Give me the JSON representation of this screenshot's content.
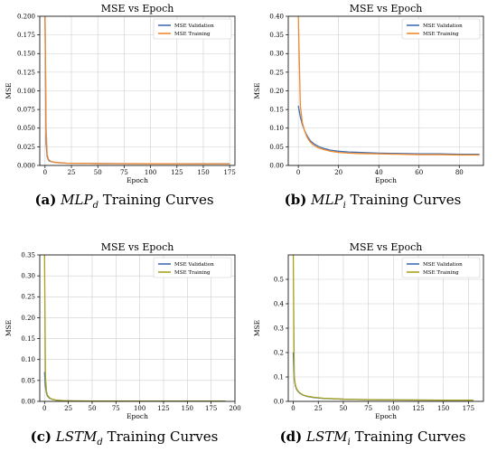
{
  "colors": {
    "validation": "#3f6fb3",
    "training_orange": "#f08a2e",
    "training_olive": "#a8a21c",
    "grid": "#cfcfcf"
  },
  "captions": [
    {
      "letter": "(a)",
      "model": "MLP",
      "sub": "d",
      "rest": "Training Curves"
    },
    {
      "letter": "(b)",
      "model": "MLP",
      "sub": "i",
      "rest": "Training Curves"
    },
    {
      "letter": "(c)",
      "model": "LSTM",
      "sub": "d",
      "rest": "Training Curves"
    },
    {
      "letter": "(d)",
      "model": "LSTM",
      "sub": "i",
      "rest": "Training Curves"
    }
  ],
  "chart_data": [
    {
      "type": "line",
      "title": "MSE vs Epoch",
      "xlabel": "Epoch",
      "ylabel": "MSE",
      "xlim": [
        -5,
        180
      ],
      "ylim": [
        0,
        0.2
      ],
      "xticks": [
        0,
        25,
        50,
        75,
        100,
        125,
        150,
        175
      ],
      "yticks": [
        0.0,
        0.025,
        0.05,
        0.075,
        0.1,
        0.125,
        0.15,
        0.175,
        0.2
      ],
      "ytick_labels": [
        "0.000",
        "0.025",
        "0.050",
        "0.075",
        "0.100",
        "0.125",
        "0.150",
        "0.175",
        "0.200"
      ],
      "grid": true,
      "legend": "top-right",
      "series": [
        {
          "name": "MSE Validation",
          "color": "#3f6fb3",
          "x": [
            0,
            1,
            2,
            3,
            4,
            6,
            10,
            20,
            50,
            100,
            150,
            175
          ],
          "y": [
            0.2,
            0.03,
            0.012,
            0.008,
            0.006,
            0.005,
            0.004,
            0.003,
            0.0025,
            0.0023,
            0.0022,
            0.0022
          ]
        },
        {
          "name": "MSE Training",
          "color": "#f08a2e",
          "x": [
            0,
            1,
            2,
            3,
            4,
            6,
            10,
            20,
            50,
            100,
            150,
            175
          ],
          "y": [
            0.2,
            0.05,
            0.015,
            0.009,
            0.007,
            0.005,
            0.004,
            0.003,
            0.0025,
            0.0022,
            0.0021,
            0.0021
          ]
        }
      ]
    },
    {
      "type": "line",
      "title": "MSE vs Epoch",
      "xlabel": "Epoch",
      "ylabel": "MSE",
      "xlim": [
        -5,
        92
      ],
      "ylim": [
        0,
        0.4
      ],
      "xticks": [
        0,
        20,
        40,
        60,
        80
      ],
      "yticks": [
        0.0,
        0.05,
        0.1,
        0.15,
        0.2,
        0.25,
        0.3,
        0.35,
        0.4
      ],
      "ytick_labels": [
        "0.00",
        "0.05",
        "0.10",
        "0.15",
        "0.20",
        "0.25",
        "0.30",
        "0.35",
        "0.40"
      ],
      "grid": true,
      "legend": "top-right",
      "series": [
        {
          "name": "MSE Validation",
          "color": "#3f6fb3",
          "x": [
            0,
            1,
            2,
            3,
            4,
            5,
            6,
            8,
            10,
            13,
            16,
            20,
            25,
            30,
            40,
            50,
            60,
            70,
            80,
            90
          ],
          "y": [
            0.16,
            0.13,
            0.11,
            0.095,
            0.083,
            0.074,
            0.066,
            0.057,
            0.051,
            0.045,
            0.041,
            0.038,
            0.036,
            0.035,
            0.033,
            0.032,
            0.031,
            0.031,
            0.03,
            0.03
          ]
        },
        {
          "name": "MSE Training",
          "color": "#f08a2e",
          "x": [
            0,
            1,
            2,
            3,
            4,
            5,
            6,
            8,
            10,
            13,
            16,
            20,
            25,
            30,
            40,
            50,
            60,
            70,
            80,
            90
          ],
          "y": [
            0.4,
            0.16,
            0.115,
            0.095,
            0.08,
            0.07,
            0.062,
            0.053,
            0.047,
            0.042,
            0.038,
            0.035,
            0.033,
            0.032,
            0.031,
            0.03,
            0.029,
            0.029,
            0.028,
            0.028
          ]
        }
      ]
    },
    {
      "type": "line",
      "title": "MSE vs Epoch",
      "xlabel": "Epoch",
      "ylabel": "MSE",
      "xlim": [
        -5,
        200
      ],
      "ylim": [
        0,
        0.35
      ],
      "xticks": [
        0,
        25,
        50,
        75,
        100,
        125,
        150,
        175,
        200
      ],
      "yticks": [
        0.0,
        0.05,
        0.1,
        0.15,
        0.2,
        0.25,
        0.3,
        0.35
      ],
      "ytick_labels": [
        "0.00",
        "0.05",
        "0.10",
        "0.15",
        "0.20",
        "0.25",
        "0.30",
        "0.35"
      ],
      "grid": true,
      "legend": "top-right",
      "series": [
        {
          "name": "MSE Validation",
          "color": "#3f6fb3",
          "x": [
            0,
            1,
            2,
            3,
            5,
            8,
            12,
            20,
            30,
            50,
            100,
            150,
            190
          ],
          "y": [
            0.07,
            0.035,
            0.02,
            0.013,
            0.008,
            0.005,
            0.003,
            0.0015,
            0.001,
            0.0008,
            0.0006,
            0.0005,
            0.0005
          ]
        },
        {
          "name": "MSE Training",
          "color": "#a8a21c",
          "x": [
            0,
            1,
            2,
            3,
            5,
            8,
            12,
            20,
            30,
            50,
            100,
            150,
            190
          ],
          "y": [
            0.35,
            0.06,
            0.025,
            0.015,
            0.009,
            0.005,
            0.003,
            0.0015,
            0.001,
            0.0008,
            0.0006,
            0.0005,
            0.0005
          ]
        }
      ]
    },
    {
      "type": "line",
      "title": "MSE vs Epoch",
      "xlabel": "Epoch",
      "ylabel": "MSE",
      "xlim": [
        -5,
        190
      ],
      "ylim": [
        0,
        0.6
      ],
      "xticks": [
        0,
        25,
        50,
        75,
        100,
        125,
        150,
        175
      ],
      "yticks": [
        0.0,
        0.1,
        0.2,
        0.3,
        0.4,
        0.5
      ],
      "ytick_labels": [
        "0.0",
        "0.1",
        "0.2",
        "0.3",
        "0.4",
        "0.5"
      ],
      "grid": true,
      "legend": "top-right",
      "series": [
        {
          "name": "MSE Validation",
          "color": "#3f6fb3",
          "x": [
            0,
            1,
            2,
            3,
            4,
            6,
            9,
            13,
            20,
            30,
            50,
            75,
            100,
            150,
            180
          ],
          "y": [
            0.2,
            0.09,
            0.065,
            0.052,
            0.045,
            0.035,
            0.027,
            0.021,
            0.016,
            0.012,
            0.009,
            0.007,
            0.006,
            0.005,
            0.005
          ]
        },
        {
          "name": "MSE Training",
          "color": "#a8a21c",
          "x": [
            0,
            1,
            2,
            3,
            4,
            6,
            9,
            13,
            20,
            30,
            50,
            75,
            100,
            150,
            180
          ],
          "y": [
            0.6,
            0.1,
            0.07,
            0.055,
            0.047,
            0.037,
            0.028,
            0.022,
            0.017,
            0.013,
            0.009,
            0.007,
            0.006,
            0.005,
            0.005
          ]
        }
      ]
    }
  ]
}
